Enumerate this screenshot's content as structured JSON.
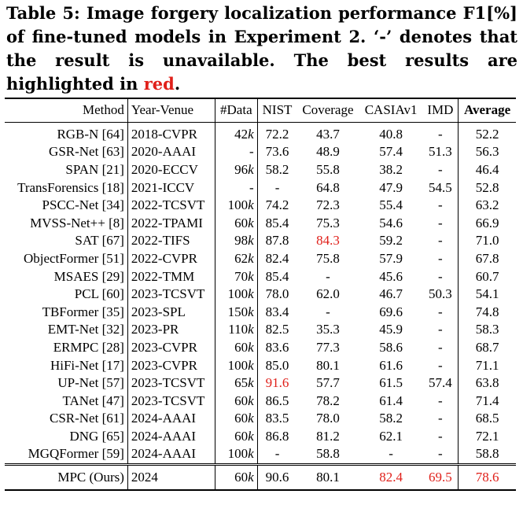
{
  "caption": {
    "text": "Table 5: Image forgery localization performance F1[%] of fine-tuned models in Experiment 2. ‘-’ denotes that the result is unavailable. The best results are highlighted in",
    "highlight_word": "red",
    "end": "."
  },
  "table": {
    "headers": [
      "Method",
      "Year-Venue",
      "#Data",
      "NIST",
      "Coverage",
      "CASIAv1",
      "IMD",
      "Average"
    ],
    "rows": [
      [
        "RGB-N [64]",
        "2018-CVPR",
        "42k",
        "72.2",
        "43.7",
        "40.8",
        "-",
        "52.2"
      ],
      [
        "GSR-Net [63]",
        "2020-AAAI",
        "-",
        "73.6",
        "48.9",
        "57.4",
        "51.3",
        "56.3"
      ],
      [
        "SPAN [21]",
        "2020-ECCV",
        "96k",
        "58.2",
        "55.8",
        "38.2",
        "-",
        "46.4"
      ],
      [
        "TransForensics [18]",
        "2021-ICCV",
        "-",
        "-",
        "64.8",
        "47.9",
        "54.5",
        "52.8"
      ],
      [
        "PSCC-Net [34]",
        "2022-TCSVT",
        "100k",
        "74.2",
        "72.3",
        "55.4",
        "-",
        "63.2"
      ],
      [
        "MVSS-Net++ [8]",
        "2022-TPAMI",
        "60k",
        "85.4",
        "75.3",
        "54.6",
        "-",
        "66.9"
      ],
      [
        "SAT [67]",
        "2022-TIFS",
        "98k",
        "87.8",
        "84.3",
        "59.2",
        "-",
        "71.0"
      ],
      [
        "ObjectFormer [51]",
        "2022-CVPR",
        "62k",
        "82.4",
        "75.8",
        "57.9",
        "-",
        "67.8"
      ],
      [
        "MSAES [29]",
        "2022-TMM",
        "70k",
        "85.4",
        "-",
        "45.6",
        "-",
        "60.7"
      ],
      [
        "PCL [60]",
        "2023-TCSVT",
        "100k",
        "78.0",
        "62.0",
        "46.7",
        "50.3",
        "54.1"
      ],
      [
        "TBFormer [35]",
        "2023-SPL",
        "150k",
        "83.4",
        "-",
        "69.6",
        "-",
        "74.8"
      ],
      [
        "EMT-Net [32]",
        "2023-PR",
        "110k",
        "82.5",
        "35.3",
        "45.9",
        "-",
        "58.3"
      ],
      [
        "ERMPC [28]",
        "2023-CVPR",
        "60k",
        "83.6",
        "77.3",
        "58.6",
        "-",
        "68.7"
      ],
      [
        "HiFi-Net [17]",
        "2023-CVPR",
        "100k",
        "85.0",
        "80.1",
        "61.6",
        "-",
        "71.1"
      ],
      [
        "UP-Net [57]",
        "2023-TCSVT",
        "65k",
        "91.6",
        "57.7",
        "61.5",
        "57.4",
        "63.8"
      ],
      [
        "TANet [47]",
        "2023-TCSVT",
        "60k",
        "86.5",
        "78.2",
        "61.4",
        "-",
        "71.4"
      ],
      [
        "CSR-Net [61]",
        "2024-AAAI",
        "60k",
        "83.5",
        "78.0",
        "58.2",
        "-",
        "68.5"
      ],
      [
        "DNG [65]",
        "2024-AAAI",
        "60k",
        "86.8",
        "81.2",
        "62.1",
        "-",
        "72.1"
      ],
      [
        "MGQFormer [59]",
        "2024-AAAI",
        "100k",
        "-",
        "58.8",
        "-",
        "-",
        "58.8"
      ]
    ],
    "final_row": [
      "MPC (Ours)",
      "2024",
      "60k",
      "90.6",
      "80.1",
      "82.4",
      "69.5",
      "78.6"
    ],
    "highlights": [
      {
        "row": 6,
        "col": 4
      },
      {
        "row": 14,
        "col": 3
      },
      {
        "row": "final",
        "col": 5
      },
      {
        "row": "final",
        "col": 6
      },
      {
        "row": "final",
        "col": 7
      }
    ],
    "highlight_color": "#e0201a"
  }
}
